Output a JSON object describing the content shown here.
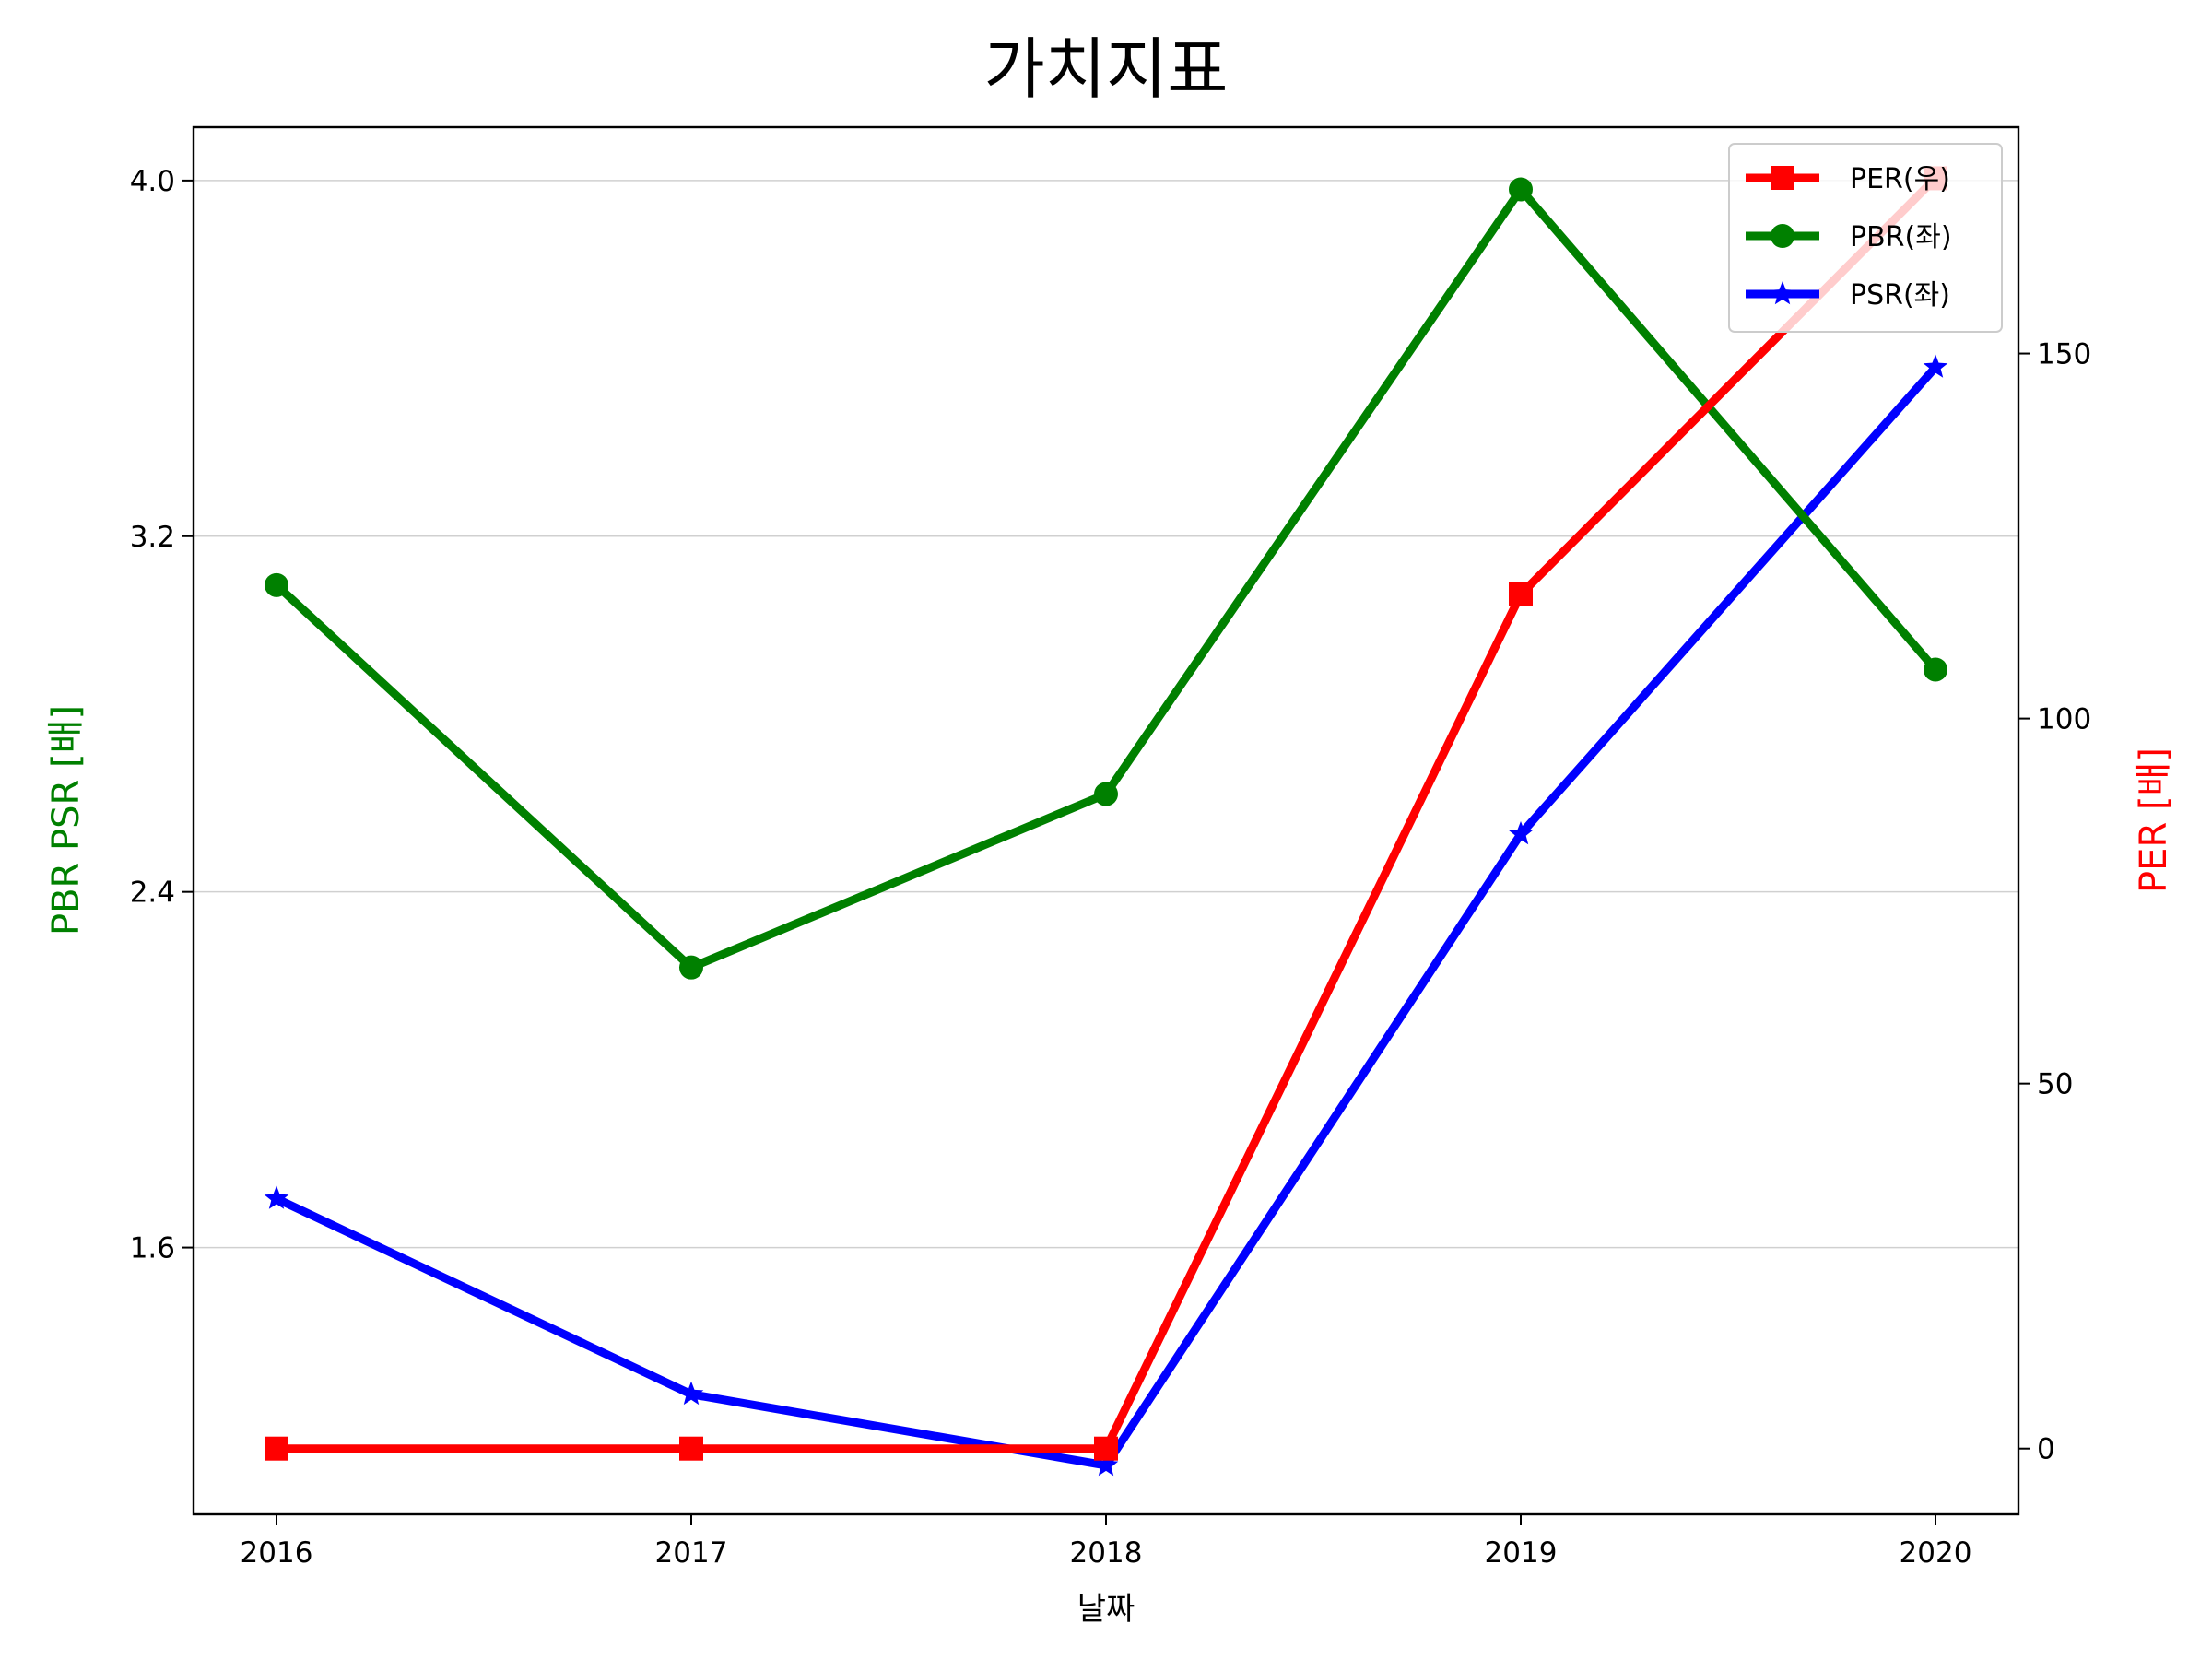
{
  "chart_data": {
    "type": "line",
    "title": "가치지표",
    "xlabel": "날짜",
    "ylabel_left": "PBR PSR [배]",
    "ylabel_right": "PER [배]",
    "categories": [
      "2016",
      "2017",
      "2018",
      "2019",
      "2020"
    ],
    "x_tick_labels": [
      "2016",
      "2017",
      "2018",
      "2019",
      "2020"
    ],
    "y_left_ticks": [
      "1.6",
      "2.4",
      "3.2",
      "4.0"
    ],
    "y_left_tick_values": [
      1.6,
      2.4,
      3.2,
      4.0
    ],
    "y_right_ticks": [
      "0",
      "50",
      "100",
      "150"
    ],
    "y_right_tick_values": [
      0,
      50,
      100,
      150
    ],
    "ylim_left": [
      1.0,
      4.12
    ],
    "ylim_right": [
      -9,
      181
    ],
    "grid": "horizontal (left axis)",
    "legend_position": "top-right",
    "left_label_color": "#008000",
    "right_label_color": "#ff0000",
    "series": [
      {
        "name": "PER(우)",
        "axis": "right",
        "color": "#ff0000",
        "marker": "square",
        "values": [
          0,
          0,
          0,
          117,
          174
        ]
      },
      {
        "name": "PBR(좌)",
        "axis": "left",
        "color": "#008000",
        "marker": "circle",
        "values": [
          3.09,
          2.23,
          2.62,
          3.98,
          2.9
        ]
      },
      {
        "name": "PSR(좌)",
        "axis": "left",
        "color": "#0000ff",
        "marker": "star",
        "values": [
          1.71,
          1.27,
          1.11,
          2.53,
          3.58
        ]
      }
    ]
  }
}
